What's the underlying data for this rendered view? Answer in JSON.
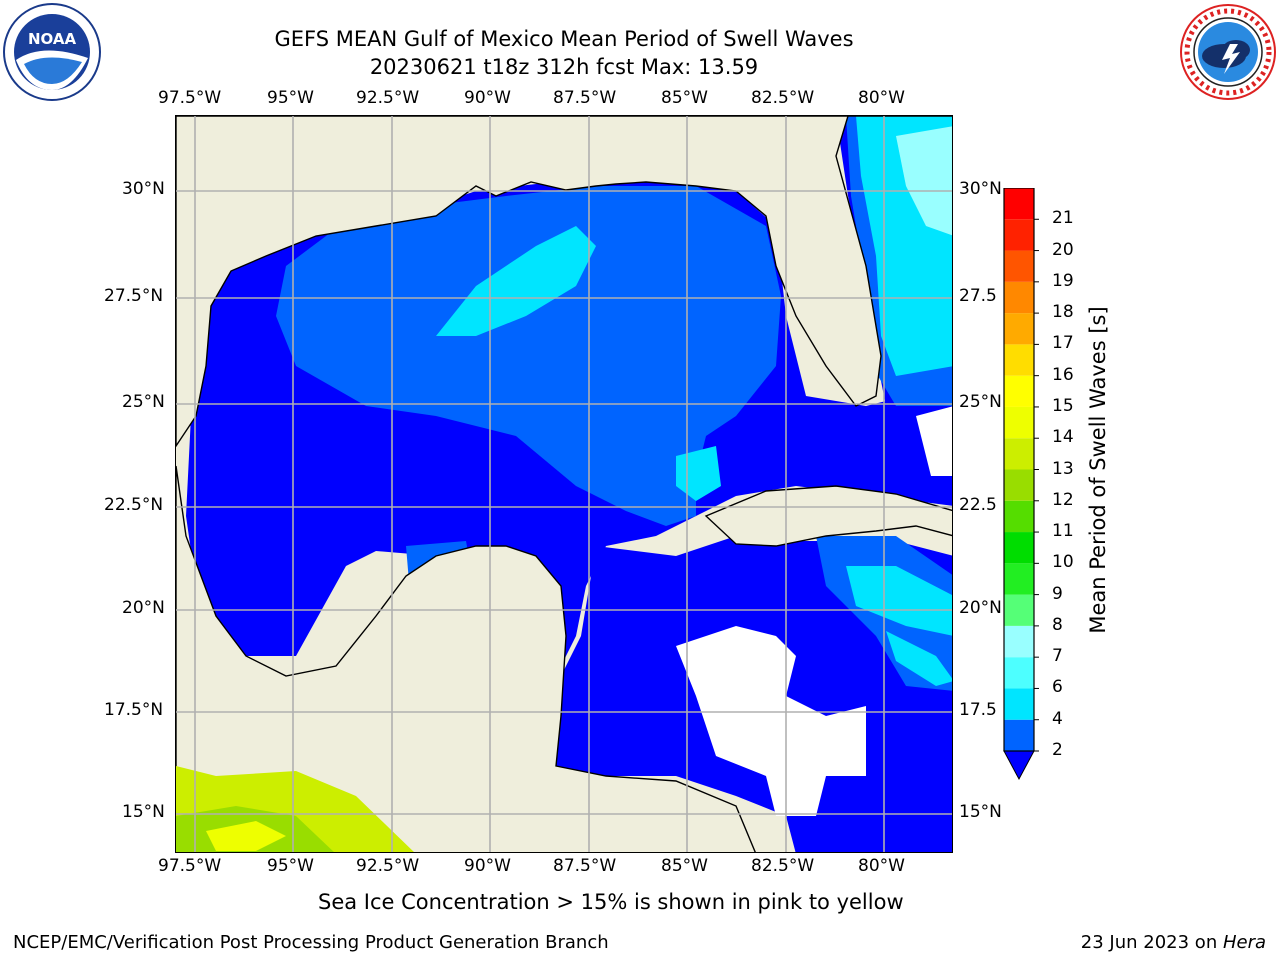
{
  "title": {
    "line1": "GEFS MEAN Gulf of Mexico Mean Period of Swell Waves",
    "line2": "20230621 t18z 312h fcst   Max: 13.59"
  },
  "logos": {
    "left": "noaa-logo",
    "right": "nws-logo"
  },
  "map": {
    "lon_ticks": [
      "97.5°W",
      "95°W",
      "92.5°W",
      "90°W",
      "87.5°W",
      "85°W",
      "82.5°W",
      "80°W"
    ],
    "lat_ticks_left": [
      "30°N",
      "27.5°N",
      "25°N",
      "22.5°N",
      "20°N",
      "17.5°N",
      "15°N"
    ],
    "lat_ticks_right": [
      "30°N",
      "27.5",
      "25°N",
      "22.5",
      "20°N",
      "17.5",
      "15°N"
    ],
    "land_color": "#efeedc",
    "grid_color": "#b0b0b0"
  },
  "colorbar": {
    "title": "Mean Period of Swell Waves [s]",
    "levels": [
      "2",
      "4",
      "6",
      "7",
      "8",
      "9",
      "10",
      "11",
      "12",
      "13",
      "14",
      "15",
      "16",
      "17",
      "18",
      "19",
      "20",
      "21"
    ],
    "colors": [
      "#0064ff",
      "#00e5ff",
      "#4dffff",
      "#99ffff",
      "#55ff77",
      "#22ee22",
      "#00dd00",
      "#55dd00",
      "#99dd00",
      "#ccee00",
      "#eeff00",
      "#ffff00",
      "#ffdd00",
      "#ffaa00",
      "#ff8800",
      "#ff5500",
      "#ff2200",
      "#ff0000"
    ],
    "under_color": "#0000ff"
  },
  "footnote": "Sea Ice Concentration > 15% is shown in pink to yellow",
  "credit": "NCEP/EMC/Verification Post Processing Product Generation Branch",
  "date": {
    "text": "23 Jun 2023 on ",
    "machine": "Hera"
  }
}
